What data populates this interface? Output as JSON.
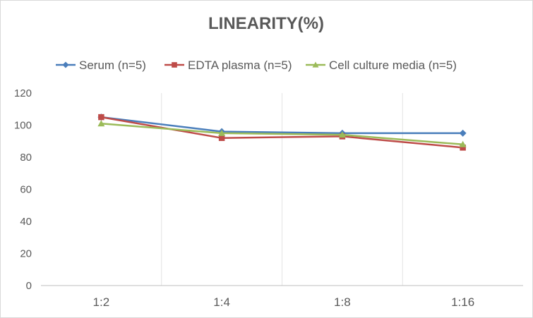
{
  "chart_data": {
    "type": "line",
    "title": "LINEARITY(%)",
    "xlabel": "",
    "ylabel": "",
    "categories": [
      "1:2",
      "1:4",
      "1:8",
      "1:16"
    ],
    "ylim": [
      0,
      120
    ],
    "yticks": [
      0,
      20,
      40,
      60,
      80,
      100,
      120
    ],
    "grid": "vertical",
    "legend_position": "top",
    "series": [
      {
        "name": "Serum (n=5)",
        "values": [
          105,
          96,
          95,
          95
        ],
        "color": "#4a7ebb",
        "marker": "diamond"
      },
      {
        "name": "EDTA plasma (n=5)",
        "values": [
          105,
          92,
          93,
          86
        ],
        "color": "#be4b48",
        "marker": "square"
      },
      {
        "name": "Cell culture media (n=5)",
        "values": [
          101,
          95,
          94,
          88
        ],
        "color": "#9bbb59",
        "marker": "triangle"
      }
    ]
  }
}
